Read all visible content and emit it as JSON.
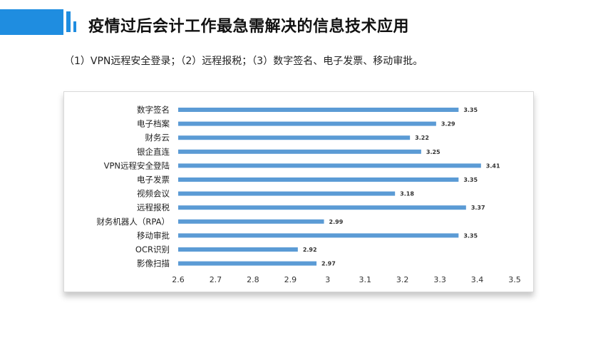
{
  "header": {
    "title": "疫情过后会计工作最急需解决的信息技术应用",
    "accent_color": "#1f8de0"
  },
  "subtitle": "（1）VPN远程安全登录；（2）远程报税；（3）数字签名、电子发票、移动审批。",
  "chart_data": {
    "type": "bar",
    "orientation": "horizontal",
    "categories": [
      "数字签名",
      "电子档案",
      "财务云",
      "银企直连",
      "VPN远程安全登陆",
      "电子发票",
      "视频会议",
      "远程报税",
      "财务机器人（RPA）",
      "移动审批",
      "OCR识别",
      "影像扫描"
    ],
    "values": [
      3.35,
      3.29,
      3.22,
      3.25,
      3.41,
      3.35,
      3.18,
      3.37,
      2.99,
      3.35,
      2.92,
      2.97
    ],
    "value_labels": [
      "3.35",
      "3.29",
      "3.22",
      "3.25",
      "3.41",
      "3.35",
      "3.18",
      "3.37",
      "2.99",
      "3.35",
      "2.92",
      "2.97"
    ],
    "xlim": [
      2.6,
      3.5
    ],
    "x_ticks": [
      "2.6",
      "2.7",
      "2.8",
      "2.9",
      "3",
      "3.1",
      "3.2",
      "3.3",
      "3.4",
      "3.5"
    ],
    "bar_color": "#5b9bd5",
    "grid": false,
    "legend": "none"
  }
}
